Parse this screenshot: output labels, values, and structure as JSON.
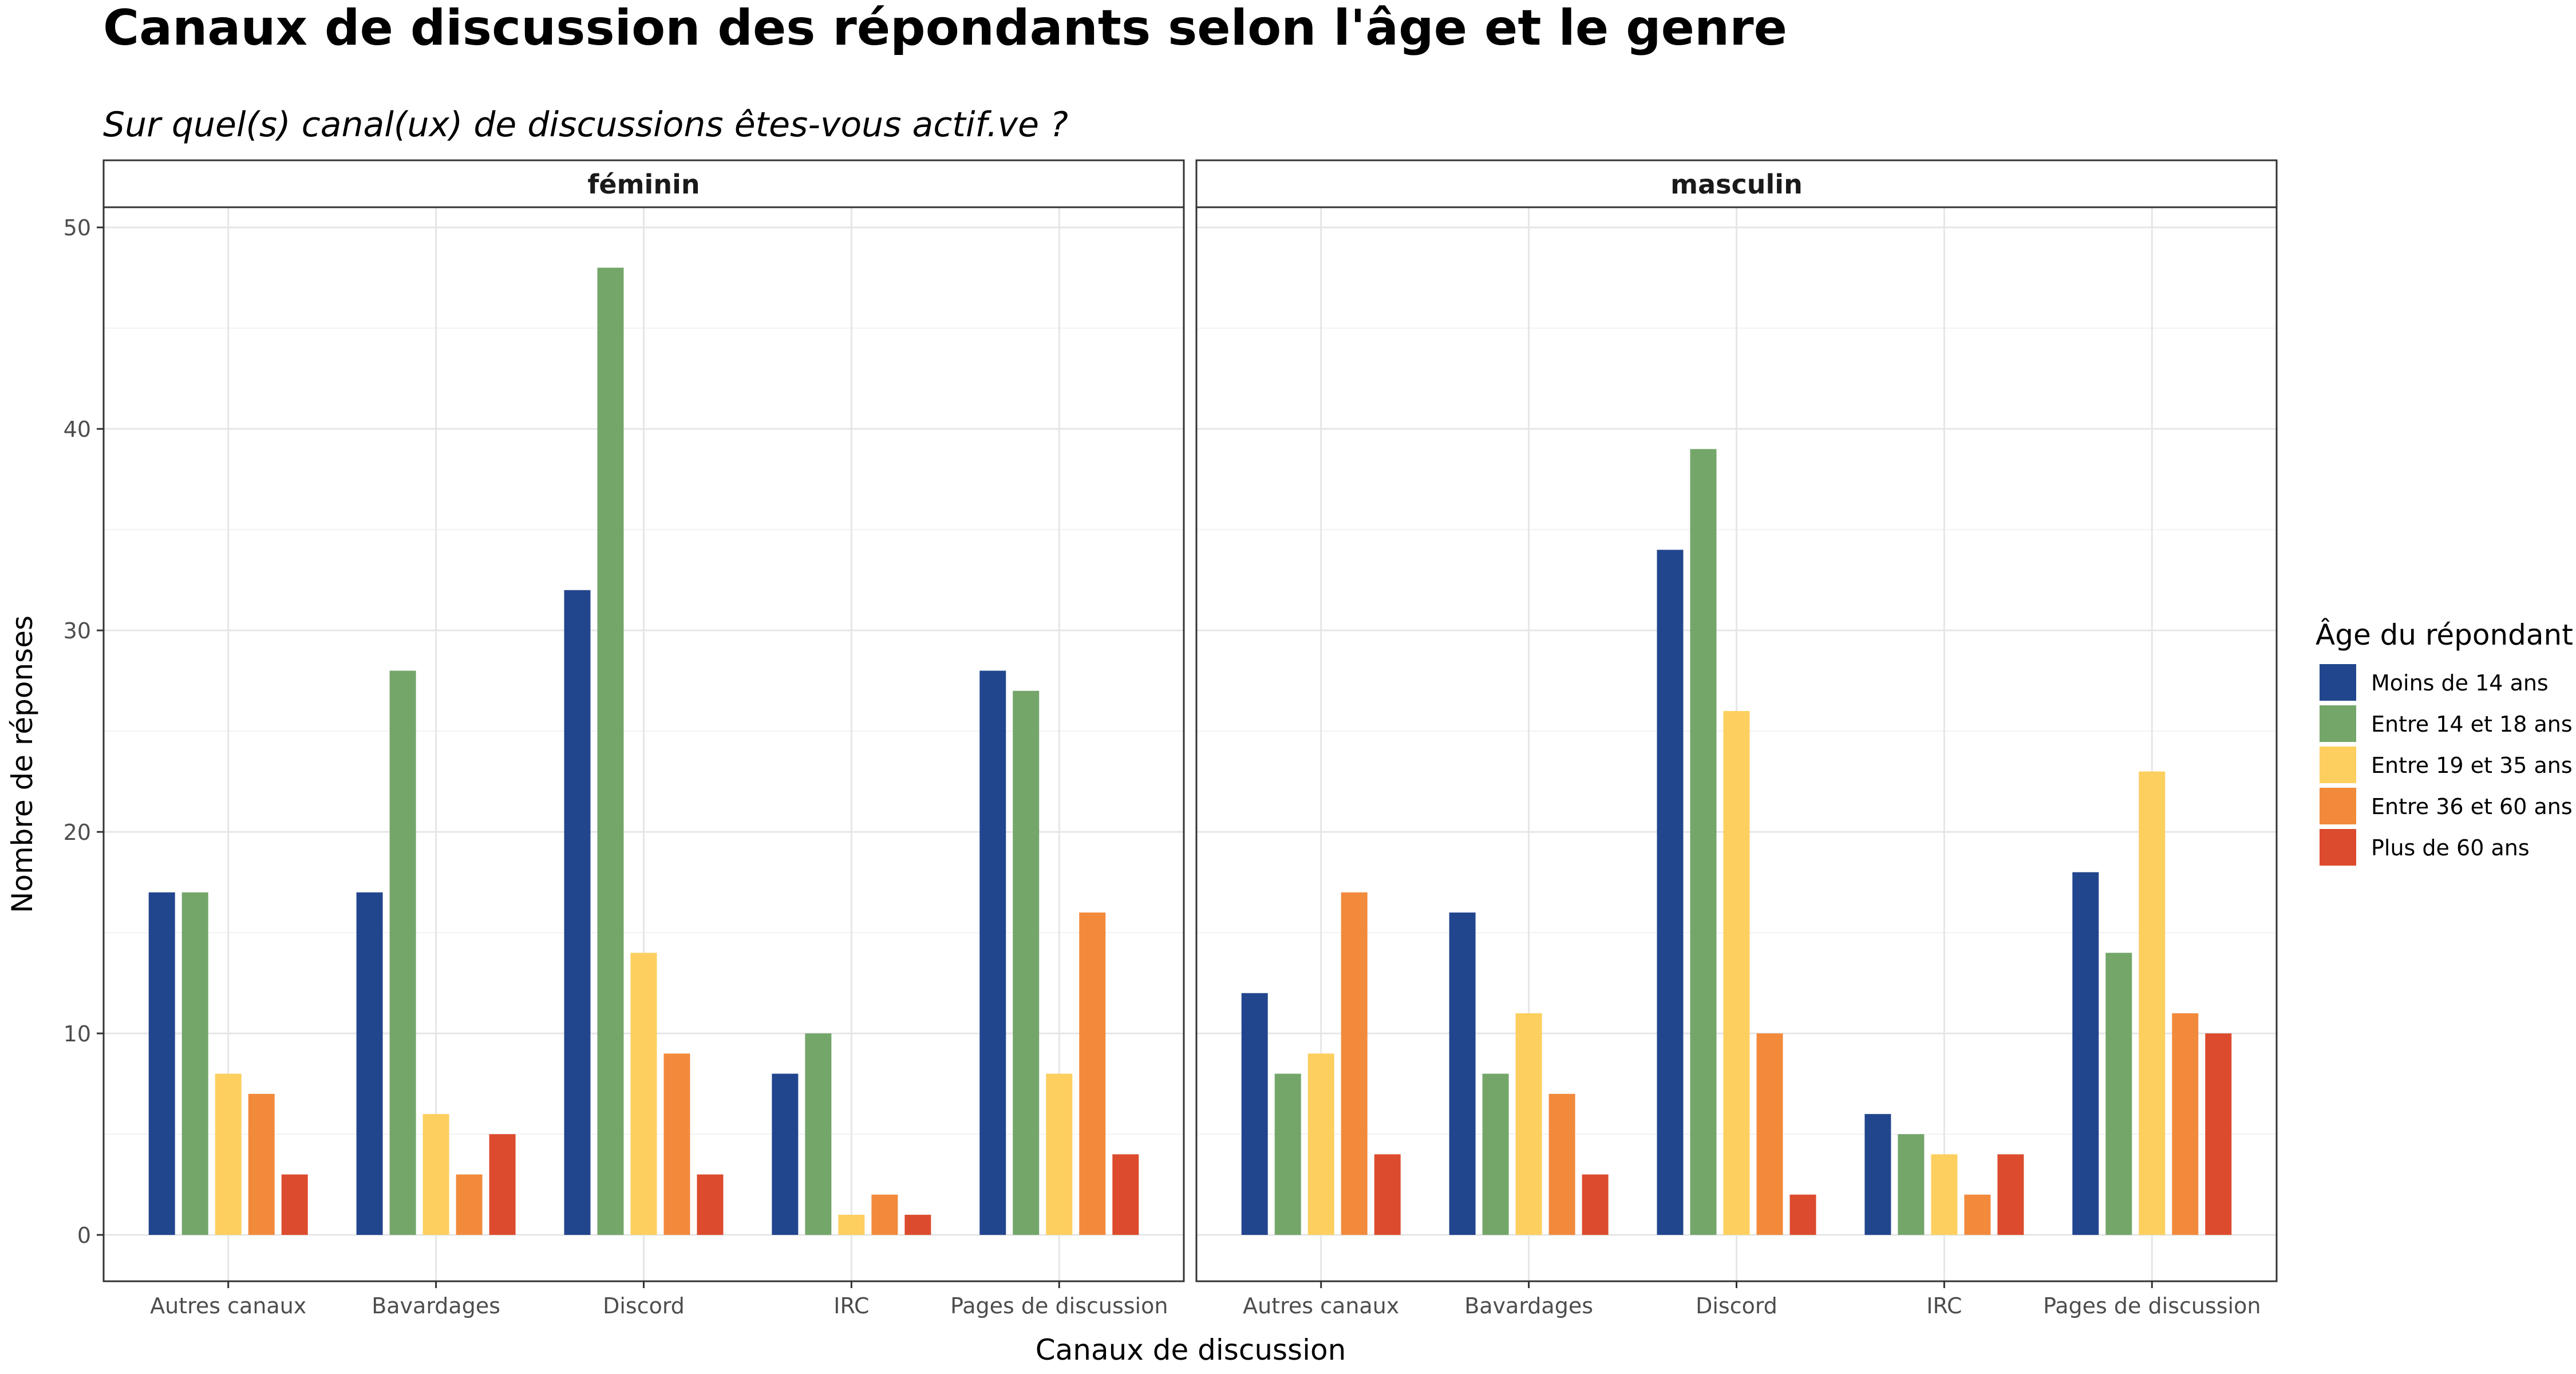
{
  "chart_data": {
    "type": "bar",
    "title": "Canaux de discussion des répondants selon l'âge et le genre",
    "subtitle": "Sur quel(s) canal(ux) de discussions êtes-vous actif.ve ?",
    "xlabel": "Canaux de discussion",
    "ylabel": "Nombre de réponses",
    "ylim": [
      -2.3,
      51
    ],
    "yticks": [
      0,
      10,
      20,
      30,
      40,
      50
    ],
    "grid": true,
    "legend_position": "right",
    "legend_title": "Âge du répondant",
    "categories": [
      "Autres canaux",
      "Bavardages",
      "Discord",
      "IRC",
      "Pages de discussion"
    ],
    "panels": [
      {
        "name": "féminin",
        "series": [
          {
            "name": "Moins de 14 ans",
            "color": "#22468e",
            "values": [
              17,
              17,
              32,
              8,
              28
            ]
          },
          {
            "name": "Entre 14 et 18 ans",
            "color": "#74a66a",
            "values": [
              17,
              28,
              48,
              10,
              27
            ]
          },
          {
            "name": "Entre 19 et 35 ans",
            "color": "#fdcf5f",
            "values": [
              8,
              6,
              14,
              1,
              8
            ]
          },
          {
            "name": "Entre 36 et 60 ans",
            "color": "#f28a3c",
            "values": [
              7,
              3,
              9,
              2,
              16
            ]
          },
          {
            "name": "Plus de 60 ans",
            "color": "#dd4b2e",
            "values": [
              3,
              5,
              3,
              1,
              4
            ]
          }
        ]
      },
      {
        "name": "masculin",
        "series": [
          {
            "name": "Moins de 14 ans",
            "color": "#22468e",
            "values": [
              12,
              16,
              34,
              6,
              18
            ]
          },
          {
            "name": "Entre 14 et 18 ans",
            "color": "#74a66a",
            "values": [
              8,
              8,
              39,
              5,
              14
            ]
          },
          {
            "name": "Entre 19 et 35 ans",
            "color": "#fdcf5f",
            "values": [
              9,
              11,
              26,
              4,
              23
            ]
          },
          {
            "name": "Entre 36 et 60 ans",
            "color": "#f28a3c",
            "values": [
              17,
              7,
              10,
              2,
              11
            ]
          },
          {
            "name": "Plus de 60 ans",
            "color": "#dd4b2e",
            "values": [
              4,
              3,
              2,
              4,
              10
            ]
          }
        ]
      }
    ]
  }
}
